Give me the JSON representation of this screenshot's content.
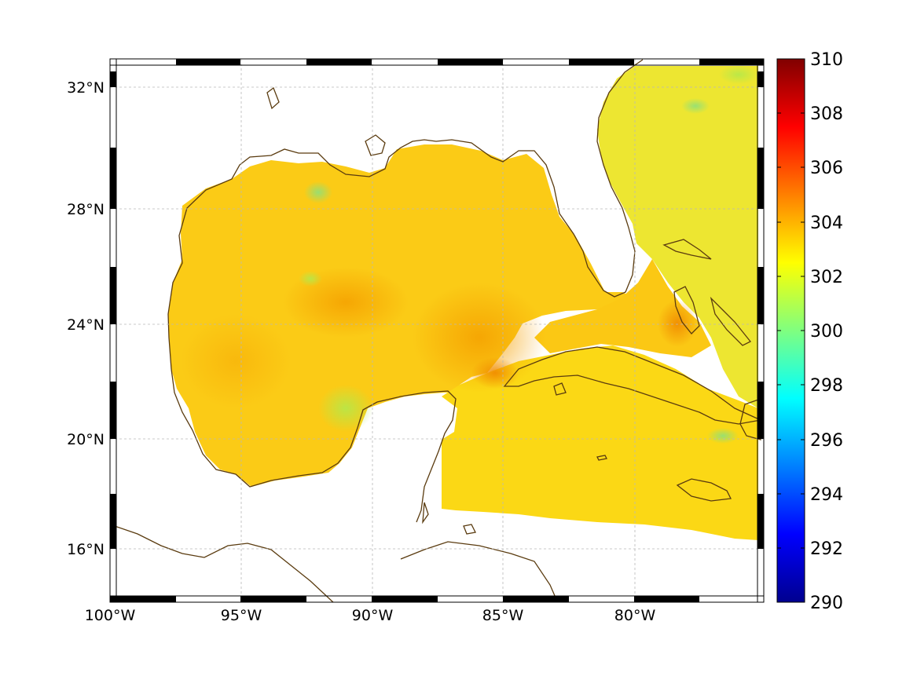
{
  "map": {
    "longitude_ticks": [
      "100°W",
      "95°W",
      "90°W",
      "85°W",
      "80°W"
    ],
    "latitude_ticks": [
      "32°N",
      "28°N",
      "24°N",
      "20°N",
      "16°N"
    ],
    "lon_range": [
      -100,
      -75.2
    ],
    "lat_range": [
      14.2,
      33
    ],
    "grid": true,
    "coastline_color": "#5a3b0f"
  },
  "colorbar": {
    "ticks": [
      "310",
      "308",
      "306",
      "304",
      "302",
      "300",
      "298",
      "296",
      "294",
      "292",
      "290"
    ],
    "range": [
      290,
      310
    ],
    "colormap": "jet"
  },
  "field": {
    "gulf_typical_value": 303.5,
    "atlantic_typical_value": 302.3,
    "caribbean_typical_value": 303.2,
    "max_value_near_bahamas": 305,
    "min_value_east_atlantic": 301
  }
}
